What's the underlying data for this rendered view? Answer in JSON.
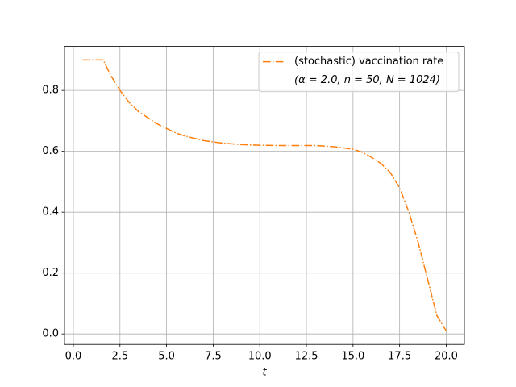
{
  "chart_data": {
    "type": "line",
    "xlabel": "t",
    "x": [
      0.5,
      1.0,
      1.6,
      2.0,
      2.5,
      3.0,
      3.5,
      4.0,
      4.5,
      5.0,
      5.5,
      6.0,
      7.0,
      8.0,
      9.0,
      10.0,
      11.0,
      12.0,
      13.0,
      14.0,
      15.0,
      15.5,
      16.0,
      16.5,
      17.0,
      17.5,
      18.0,
      18.5,
      19.0,
      19.5,
      20.0
    ],
    "series": [
      {
        "name": "(stochastic) vaccination rate",
        "name_detail": "(α = 2.0, n = 50, N = 1024)",
        "color": "#ff7f0e",
        "values": [
          0.9,
          0.9,
          0.9,
          0.85,
          0.8,
          0.76,
          0.73,
          0.71,
          0.69,
          0.675,
          0.66,
          0.65,
          0.635,
          0.627,
          0.622,
          0.62,
          0.619,
          0.619,
          0.619,
          0.615,
          0.607,
          0.597,
          0.58,
          0.56,
          0.53,
          0.48,
          0.4,
          0.3,
          0.18,
          0.06,
          0.01
        ]
      }
    ],
    "xlim": [
      -0.475,
      20.975
    ],
    "ylim": [
      -0.0345,
      0.9445
    ],
    "xticks": [
      {
        "value": 0,
        "label": "0.0"
      },
      {
        "value": 2.5,
        "label": "2.5"
      },
      {
        "value": 5,
        "label": "5.0"
      },
      {
        "value": 7.5,
        "label": "7.5"
      },
      {
        "value": 10,
        "label": "10.0"
      },
      {
        "value": 12.5,
        "label": "12.5"
      },
      {
        "value": 15,
        "label": "15.0"
      },
      {
        "value": 17.5,
        "label": "17.5"
      },
      {
        "value": 20,
        "label": "20.0"
      }
    ],
    "yticks": [
      {
        "value": 0,
        "label": "0.0"
      },
      0.2,
      0.4,
      0.6,
      0.8
    ],
    "grid": true,
    "legend": "upper right"
  }
}
